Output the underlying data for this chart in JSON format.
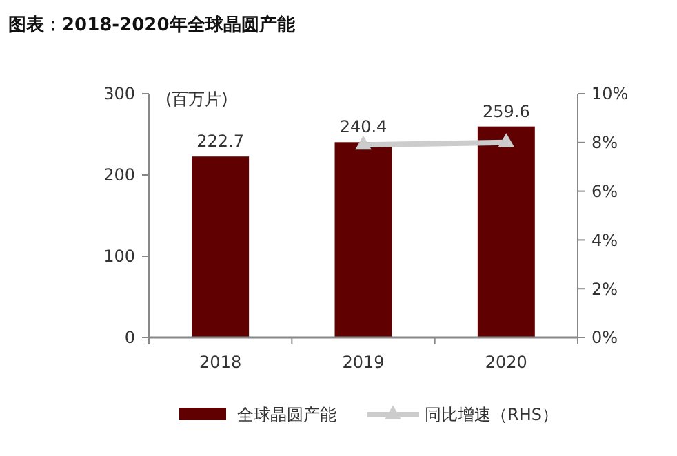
{
  "chart_data": {
    "type": "bar",
    "title": "图表：2018-2020年全球晶圆产能",
    "ylabel": "(百万片)",
    "categories": [
      "2018",
      "2019",
      "2020"
    ],
    "series": [
      {
        "name": "全球晶圆产能",
        "color": "#600000",
        "values": [
          222.7,
          240.4,
          259.6
        ],
        "value_labels": [
          "222.7",
          "240.4",
          "259.6"
        ]
      },
      {
        "name": "同比增速（RHS）",
        "type": "line",
        "axis": "y2",
        "color": "#cccccc",
        "marker": "triangle",
        "values": [
          null,
          7.9,
          8.0
        ]
      }
    ],
    "ylim": [
      0,
      300
    ],
    "yticks": [
      0,
      100,
      200,
      300
    ],
    "y2lim": [
      0,
      10
    ],
    "y2ticks": [
      {
        "value": 0,
        "label": "0%"
      },
      {
        "value": 2,
        "label": "2%"
      },
      {
        "value": 4,
        "label": "4%"
      },
      {
        "value": 6,
        "label": "6%"
      },
      {
        "value": 8,
        "label": "8%"
      },
      {
        "value": 10,
        "label": "10%"
      }
    ],
    "grid": false,
    "legend": "bottom"
  }
}
